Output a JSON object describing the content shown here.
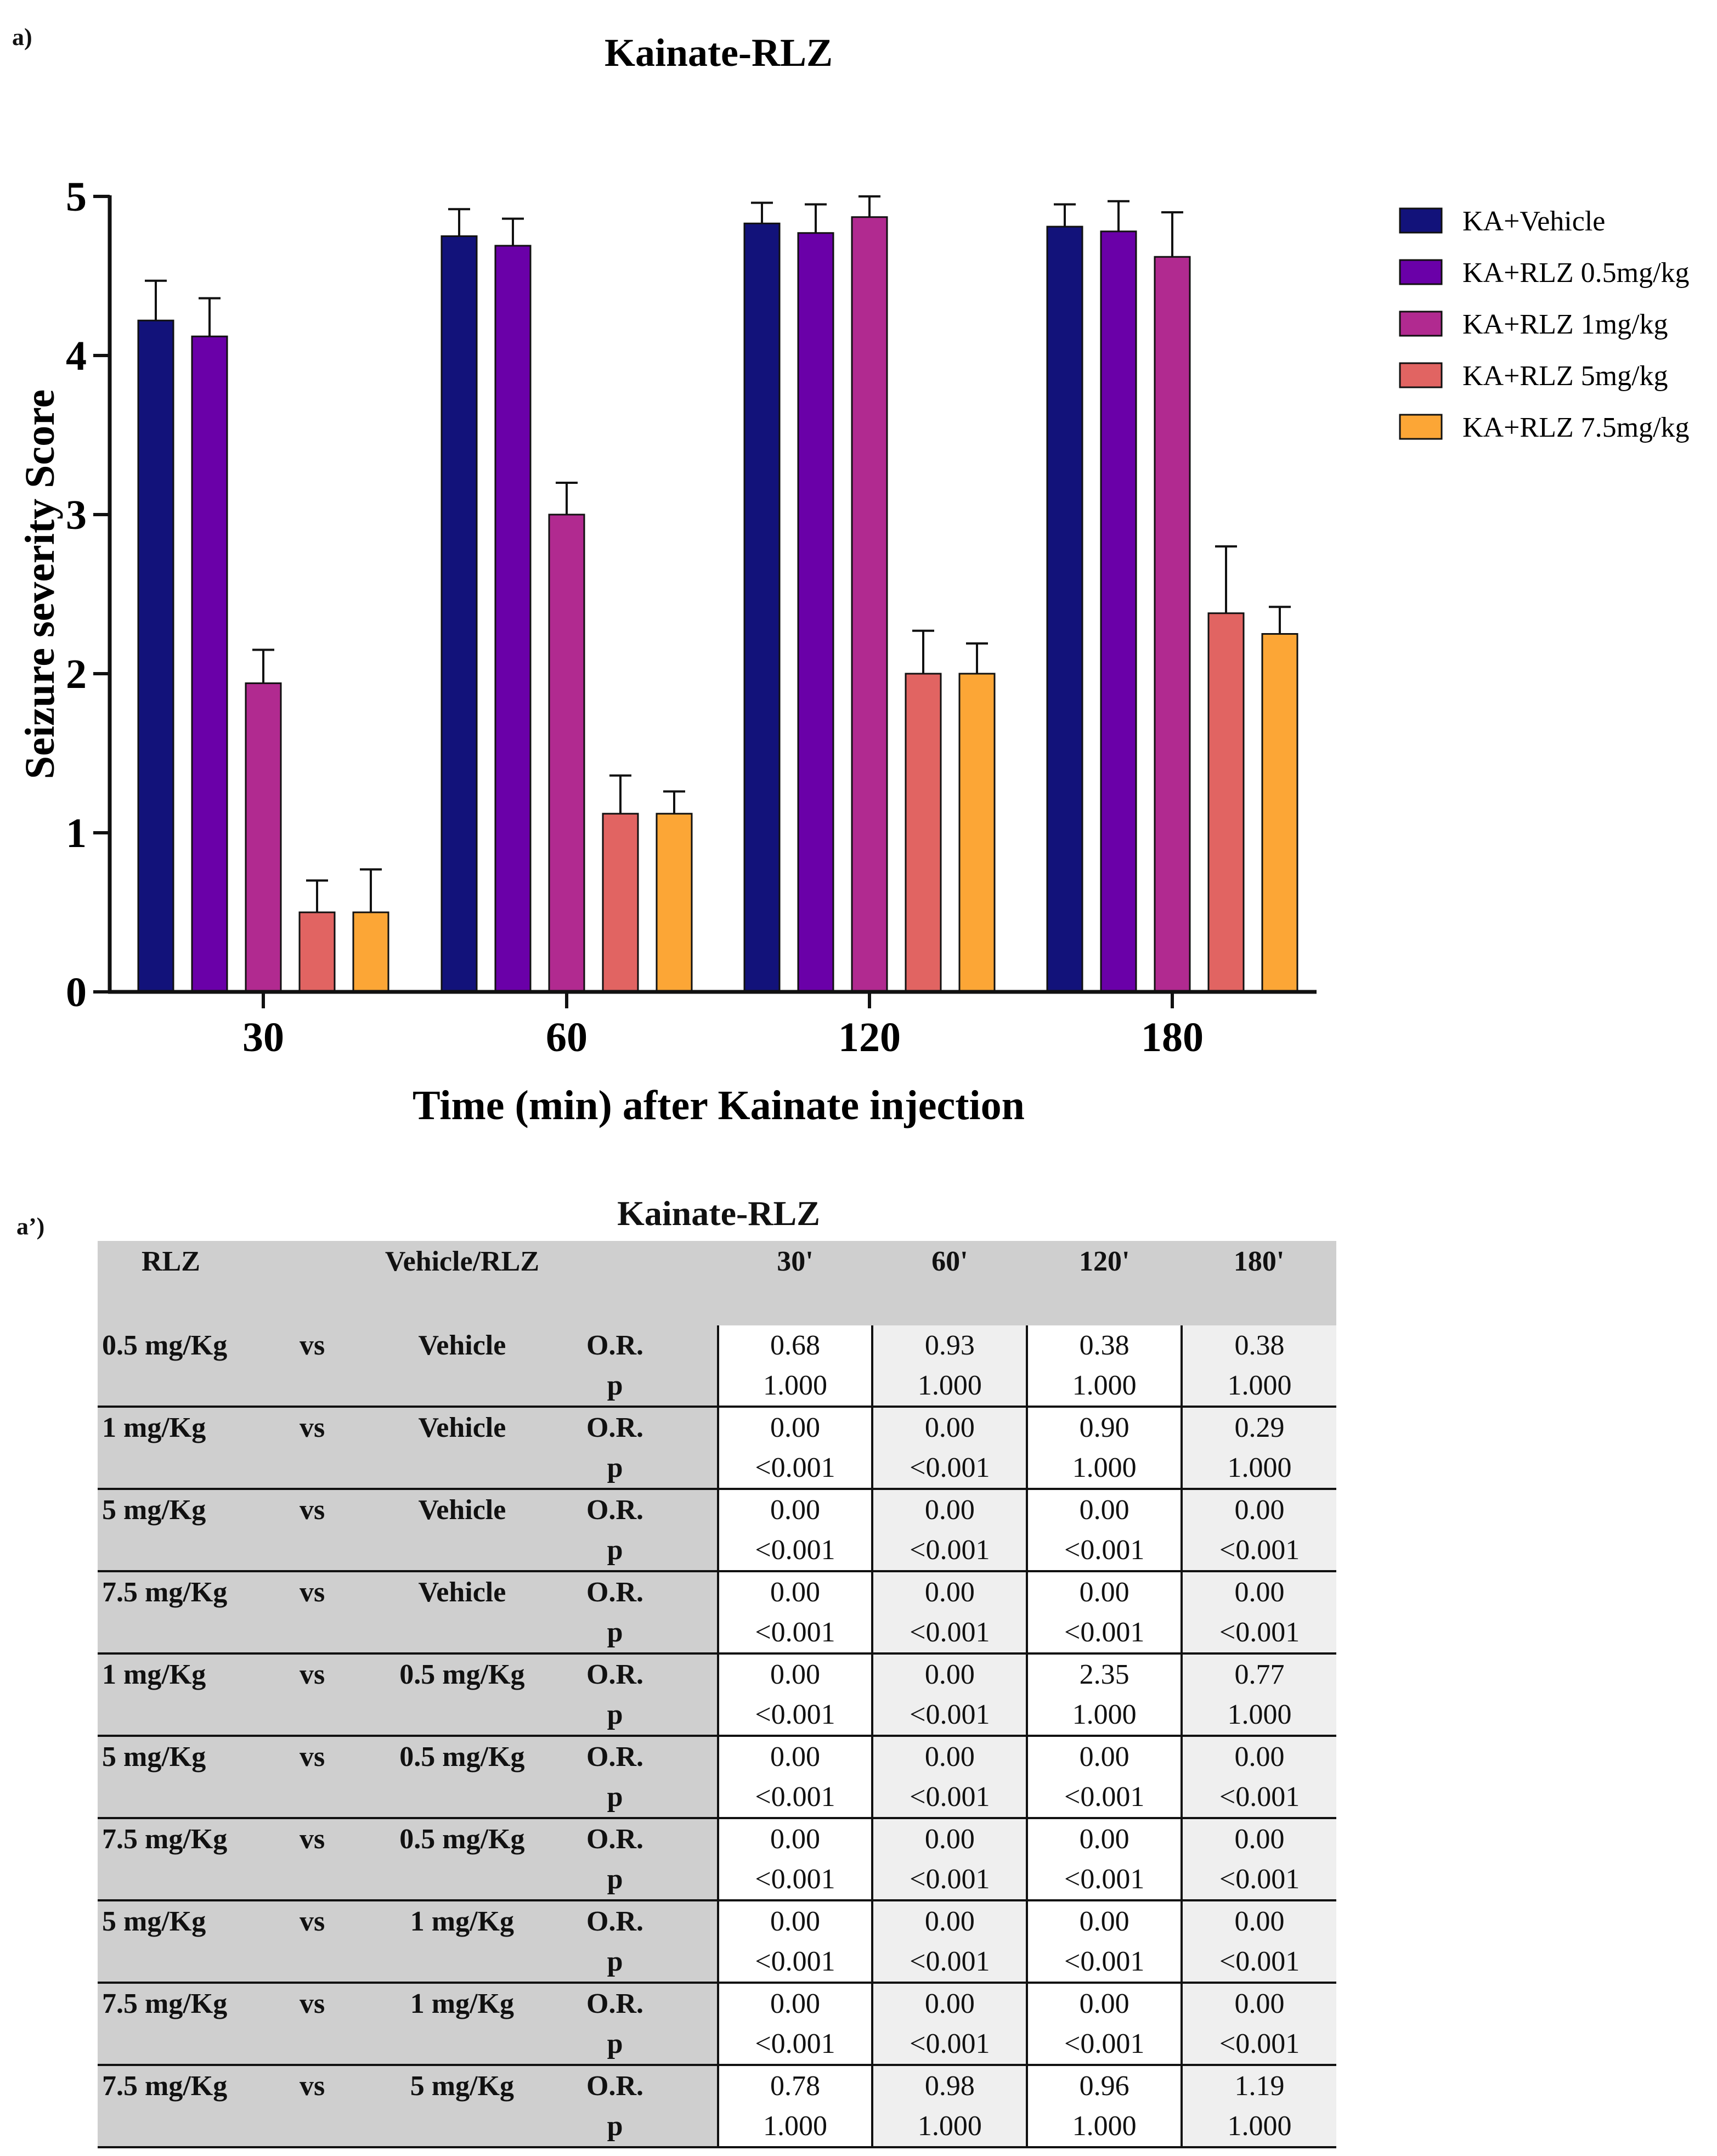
{
  "labels": {
    "panel_a": "a)",
    "panel_a2": "a’)"
  },
  "chart_data": {
    "type": "bar",
    "title": "Kainate-RLZ",
    "xlabel": "Time (min) after Kainate injection",
    "ylabel": "Seizure severity Score",
    "categories": [
      "30",
      "60",
      "120",
      "180"
    ],
    "ylim": [
      0,
      5
    ],
    "yticks": [
      "0",
      "1",
      "2",
      "3",
      "4",
      "5"
    ],
    "legend_position": "right",
    "series": [
      {
        "name": "KA+Vehicle",
        "color": "#12127a",
        "values": [
          4.22,
          4.75,
          4.83,
          4.81
        ],
        "errors": [
          0.25,
          0.17,
          0.13,
          0.14
        ]
      },
      {
        "name": "KA+RLZ 0.5mg/kg",
        "color": "#6a00a8",
        "values": [
          4.12,
          4.69,
          4.77,
          4.78
        ],
        "errors": [
          0.24,
          0.17,
          0.18,
          0.19
        ]
      },
      {
        "name": "KA+RLZ 1mg/kg",
        "color": "#b12a90",
        "values": [
          1.94,
          3.0,
          4.87,
          4.62
        ],
        "errors": [
          0.21,
          0.2,
          0.13,
          0.28
        ]
      },
      {
        "name": "KA+RLZ 5mg/kg",
        "color": "#e16462",
        "values": [
          0.5,
          1.12,
          2.0,
          2.38
        ],
        "errors": [
          0.2,
          0.24,
          0.27,
          0.42
        ]
      },
      {
        "name": "KA+RLZ 7.5mg/kg",
        "color": "#fca636",
        "values": [
          0.5,
          1.12,
          2.0,
          2.25
        ],
        "errors": [
          0.27,
          0.14,
          0.19,
          0.17
        ]
      }
    ]
  },
  "table": {
    "title": "Kainate-RLZ",
    "headers": [
      "RLZ",
      "Vehicle/RLZ",
      "30'",
      "60'",
      "120'",
      "180'"
    ],
    "rows": [
      {
        "a": "0.5 mg/Kg",
        "vs": "vs",
        "b": "Vehicle",
        "or_label": "O.R.",
        "p_label": "p",
        "or": [
          "0.68",
          "0.93",
          "0.38",
          "0.38"
        ],
        "p": [
          "1.000",
          "1.000",
          "1.000",
          "1.000"
        ]
      },
      {
        "a": "1 mg/Kg",
        "vs": "vs",
        "b": "Vehicle",
        "or_label": "O.R.",
        "p_label": "p",
        "or": [
          "0.00",
          "0.00",
          "0.90",
          "0.29"
        ],
        "p": [
          "<0.001",
          "<0.001",
          "1.000",
          "1.000"
        ]
      },
      {
        "a": "5 mg/Kg",
        "vs": "vs",
        "b": "Vehicle",
        "or_label": "O.R.",
        "p_label": "p",
        "or": [
          "0.00",
          "0.00",
          "0.00",
          "0.00"
        ],
        "p": [
          "<0.001",
          "<0.001",
          "<0.001",
          "<0.001"
        ]
      },
      {
        "a": "7.5 mg/Kg",
        "vs": "vs",
        "b": "Vehicle",
        "or_label": "O.R.",
        "p_label": "p",
        "or": [
          "0.00",
          "0.00",
          "0.00",
          "0.00"
        ],
        "p": [
          "<0.001",
          "<0.001",
          "<0.001",
          "<0.001"
        ]
      },
      {
        "a": "1 mg/Kg",
        "vs": "vs",
        "b": "0.5 mg/Kg",
        "or_label": "O.R.",
        "p_label": "p",
        "or": [
          "0.00",
          "0.00",
          "2.35",
          "0.77"
        ],
        "p": [
          "<0.001",
          "<0.001",
          "1.000",
          "1.000"
        ]
      },
      {
        "a": "5 mg/Kg",
        "vs": "vs",
        "b": "0.5 mg/Kg",
        "or_label": "O.R.",
        "p_label": "p",
        "or": [
          "0.00",
          "0.00",
          "0.00",
          "0.00"
        ],
        "p": [
          "<0.001",
          "<0.001",
          "<0.001",
          "<0.001"
        ]
      },
      {
        "a": "7.5 mg/Kg",
        "vs": "vs",
        "b": "0.5 mg/Kg",
        "or_label": "O.R.",
        "p_label": "p",
        "or": [
          "0.00",
          "0.00",
          "0.00",
          "0.00"
        ],
        "p": [
          "<0.001",
          "<0.001",
          "<0.001",
          "<0.001"
        ]
      },
      {
        "a": "5 mg/Kg",
        "vs": "vs",
        "b": "1 mg/Kg",
        "or_label": "O.R.",
        "p_label": "p",
        "or": [
          "0.00",
          "0.00",
          "0.00",
          "0.00"
        ],
        "p": [
          "<0.001",
          "<0.001",
          "<0.001",
          "<0.001"
        ]
      },
      {
        "a": "7.5 mg/Kg",
        "vs": "vs",
        "b": "1 mg/Kg",
        "or_label": "O.R.",
        "p_label": "p",
        "or": [
          "0.00",
          "0.00",
          "0.00",
          "0.00"
        ],
        "p": [
          "<0.001",
          "<0.001",
          "<0.001",
          "<0.001"
        ]
      },
      {
        "a": "7.5 mg/Kg",
        "vs": "vs",
        "b": "5 mg/Kg",
        "or_label": "O.R.",
        "p_label": "p",
        "or": [
          "0.78",
          "0.98",
          "0.96",
          "1.19"
        ],
        "p": [
          "1.000",
          "1.000",
          "1.000",
          "1.000"
        ]
      }
    ]
  }
}
